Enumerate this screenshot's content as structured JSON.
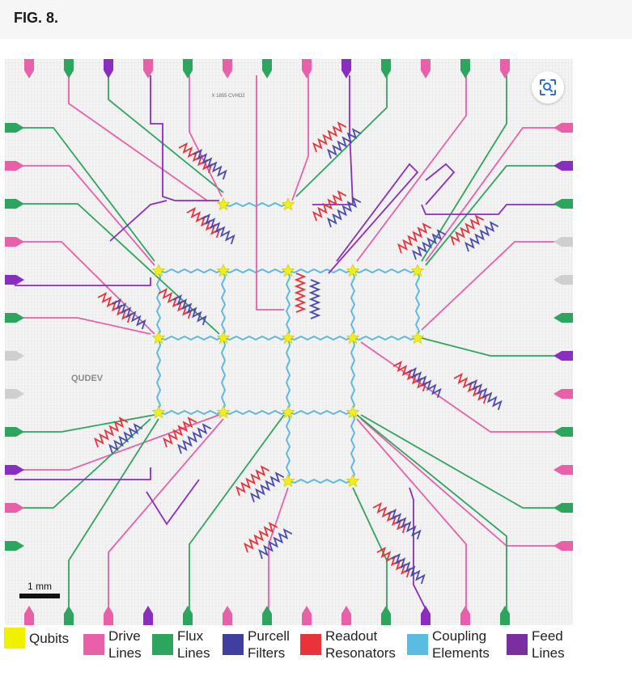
{
  "figure_label": "FIG. 8.",
  "chip": {
    "mask_id": "X 1855 CVHD2",
    "logo": "QUDEV",
    "scale_bar": "1 mm"
  },
  "legend": [
    {
      "line1": "Qubits",
      "line2": "",
      "color": "#f0f000"
    },
    {
      "line1": "Drive",
      "line2": "Lines",
      "color": "#e860a8"
    },
    {
      "line1": "Flux",
      "line2": "Lines",
      "color": "#2ea55f"
    },
    {
      "line1": "Purcell",
      "line2": "Filters",
      "color": "#3f3fa0"
    },
    {
      "line1": "Readout",
      "line2": "Resonators",
      "color": "#e8333a"
    },
    {
      "line1": "Coupling",
      "line2": "Elements",
      "color": "#5cbbe0"
    },
    {
      "line1": "Feed",
      "line2": "Lines",
      "color": "#7a2ea0"
    }
  ],
  "colors": {
    "drive": "#e860a8",
    "flux": "#2ea55f",
    "purcell": "#4a4ab0",
    "readout": "#e8333a",
    "coupling": "#5cbbe0",
    "feed": "#8a2ec0",
    "qubit": "#f2ee1c"
  },
  "icons": {
    "zoom": "zoom-lens-icon"
  }
}
